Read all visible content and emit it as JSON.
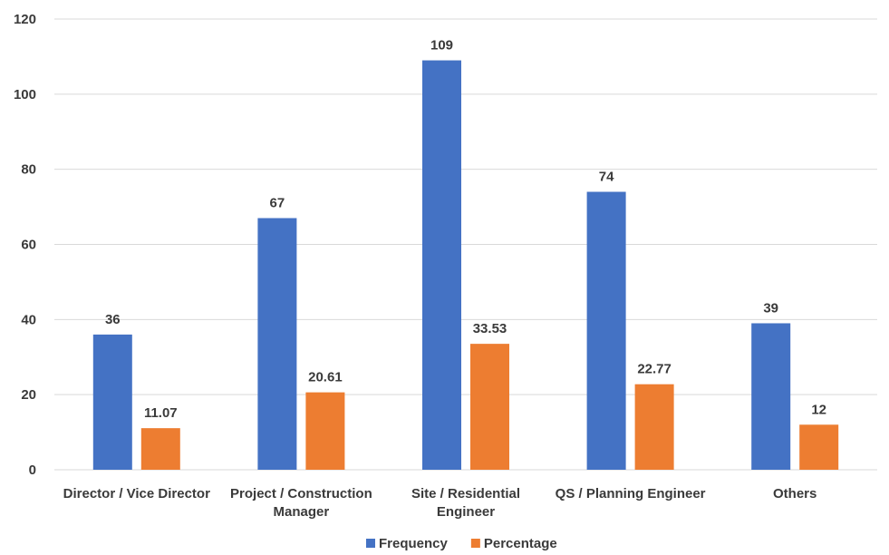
{
  "chart_data": {
    "type": "bar",
    "title": "",
    "xlabel": "",
    "ylabel": "",
    "ylim": [
      0,
      120
    ],
    "yticks": [
      0,
      20,
      40,
      60,
      80,
      100,
      120
    ],
    "grid": true,
    "legend_position": "bottom",
    "categories": [
      [
        "Director / Vice Director"
      ],
      [
        "Project / Construction",
        "Manager"
      ],
      [
        "Site / Residential",
        "Engineer"
      ],
      [
        "QS / Planning Engineer"
      ],
      [
        "Others"
      ]
    ],
    "series": [
      {
        "name": "Frequency",
        "color": "#4472c4",
        "values": [
          36,
          67,
          109,
          74,
          39
        ],
        "labels": [
          "36",
          "67",
          "109",
          "74",
          "39"
        ]
      },
      {
        "name": "Percentage",
        "color": "#ed7d31",
        "values": [
          11.07,
          20.61,
          33.53,
          22.77,
          12
        ],
        "labels": [
          "11.07",
          "20.61",
          "33.53",
          "22.77",
          "12"
        ]
      }
    ]
  }
}
